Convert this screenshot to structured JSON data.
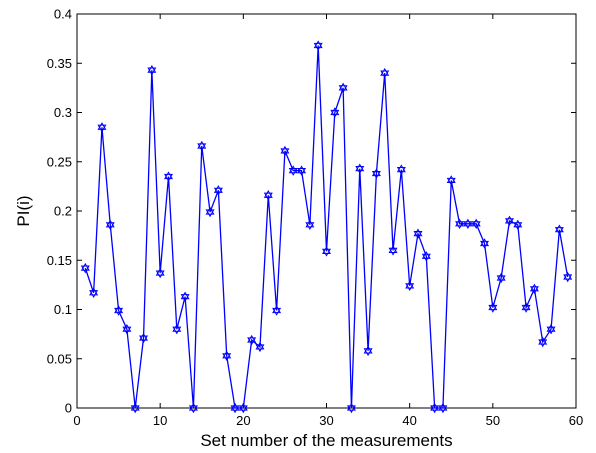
{
  "chart_data": {
    "type": "line",
    "title": "",
    "xlabel": "Set number of the measurements",
    "ylabel": "PI(i)",
    "xlim": [
      0,
      60
    ],
    "ylim": [
      0,
      0.4
    ],
    "xticks": [
      0,
      10,
      20,
      30,
      40,
      50,
      60
    ],
    "yticks": [
      0,
      0.05,
      0.1,
      0.15,
      0.2,
      0.25,
      0.3,
      0.35,
      0.4
    ],
    "xtick_labels": [
      "0",
      "10",
      "20",
      "30",
      "40",
      "50",
      "60"
    ],
    "ytick_labels": [
      "0",
      "0.05",
      "0.1",
      "0.15",
      "0.2",
      "0.25",
      "0.3",
      "0.35",
      "0.4"
    ],
    "grid": false,
    "line_color": "#0000ff",
    "marker": "hexagram",
    "series": [
      {
        "x": [
          1,
          2,
          3,
          4,
          5,
          6,
          7,
          8,
          9,
          10,
          11,
          12,
          13,
          14,
          15,
          16,
          17,
          18,
          19,
          20,
          21,
          22,
          23,
          24,
          25,
          26,
          27,
          28,
          29,
          30,
          31,
          32,
          33,
          34,
          35,
          36,
          37,
          38,
          39,
          40,
          41,
          42,
          43,
          44,
          45,
          46,
          47,
          48,
          49,
          50,
          51,
          52,
          53,
          54,
          55,
          56,
          57,
          58,
          59
        ],
        "values": [
          0.142,
          0.117,
          0.285,
          0.186,
          0.099,
          0.08,
          0.0,
          0.071,
          0.343,
          0.137,
          0.235,
          0.08,
          0.113,
          0.0,
          0.266,
          0.199,
          0.221,
          0.053,
          0.0,
          0.0,
          0.069,
          0.062,
          0.216,
          0.099,
          0.261,
          0.241,
          0.241,
          0.186,
          0.368,
          0.159,
          0.3,
          0.325,
          0.0,
          0.243,
          0.058,
          0.238,
          0.34,
          0.16,
          0.242,
          0.124,
          0.177,
          0.154,
          0.0,
          0.0,
          0.231,
          0.187,
          0.187,
          0.187,
          0.167,
          0.102,
          0.132,
          0.19,
          0.186,
          0.102,
          0.121,
          0.067,
          0.08,
          0.181,
          0.133
        ]
      }
    ]
  }
}
